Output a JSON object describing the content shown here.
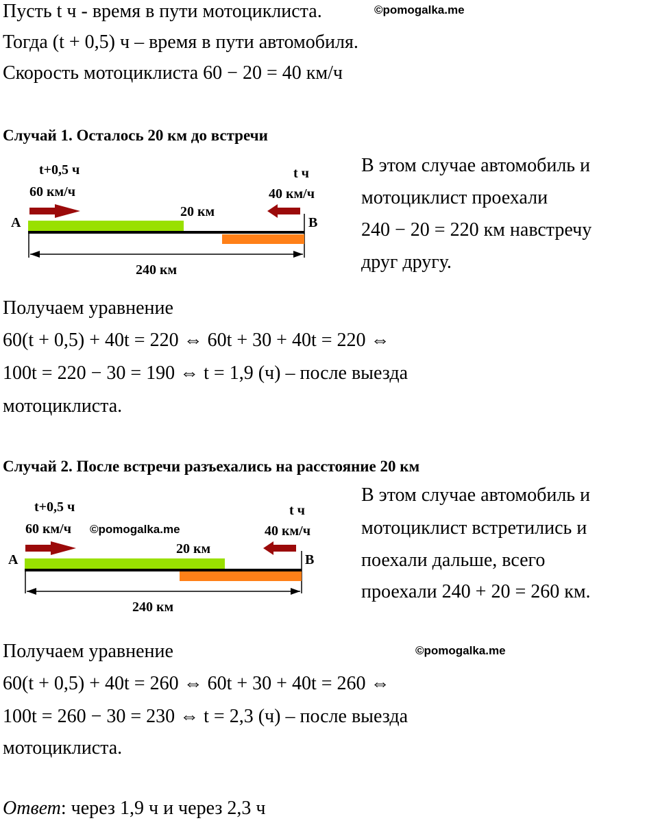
{
  "intro": [
    "Пусть t ч - время в пути мотоциклиста.",
    "Тогда (t + 0,5) ч – время в пути автомобиля.",
    "Скорость мотоциклиста 60 − 20 = 40 км/ч"
  ],
  "watermark": "©pomogalka.me",
  "case1": {
    "heading": "Случай 1. Осталось 20 км до встречи",
    "diagram": {
      "car_time": "t+0,5 ч",
      "car_speed": "60 км/ч",
      "moto_time": "t ч",
      "moto_speed": "40 км/ч",
      "gap": "20 км",
      "point_a": "A",
      "point_b": "B",
      "total": "240 км"
    },
    "explanation": [
      "В этом случае автомобиль и",
      "мотоциклист проехали",
      "240 − 20 = 220 км навстречу",
      "друг другу."
    ],
    "solution": [
      "Получаем уравнение",
      "60(t + 0,5) + 40t = 220 ⇔ 60t + 30 + 40t = 220 ⇔",
      "100t = 220 − 30 = 190 ⇔ t = 1,9  (ч) – после выезда",
      "мотоциклиста."
    ]
  },
  "case2": {
    "heading": "Случай 2. После встречи разъехались на расстояние 20 км",
    "diagram": {
      "car_time": "t+0,5 ч",
      "car_speed": "60 км/ч",
      "moto_time": "t ч",
      "moto_speed": "40 км/ч",
      "gap": "20 км",
      "point_a": "A",
      "point_b": "B",
      "total": "240 км"
    },
    "explanation": [
      "В этом случае автомобиль и",
      "мотоциклист встретились и",
      "поехали дальше, всего",
      "проехали 240 + 20 = 260 км."
    ],
    "solution": [
      "Получаем уравнение",
      "60(t + 0,5) + 40t = 260 ⇔ 60t + 30 + 40t = 260 ⇔",
      "100t = 260 − 30 = 230 ⇔ t = 2,3  (ч) – после выезда",
      "мотоциклиста."
    ]
  },
  "answer": {
    "label": "Ответ",
    "text": ": через 1,9 ч и через 2,3 ч"
  },
  "colors": {
    "green": "#99e000",
    "orange": "#ff8018",
    "arrow": "#9b0a0a"
  }
}
